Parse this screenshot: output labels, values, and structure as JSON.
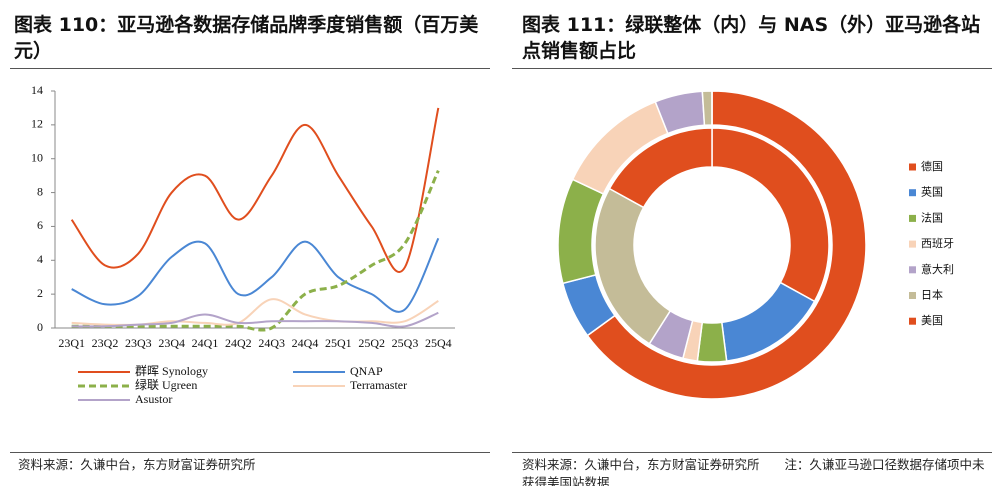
{
  "chart_data": [
    {
      "type": "line",
      "title": "图表 110：亚马逊各数据存储品牌季度销售额（百万美元）",
      "source": "资料来源：久谦中台，东方财富证券研究所",
      "categories": [
        "23Q1",
        "23Q2",
        "23Q3",
        "23Q4",
        "24Q1",
        "24Q2",
        "24Q3",
        "24Q4",
        "25Q1",
        "25Q2",
        "25Q3",
        "25Q4"
      ],
      "ylim": [
        0,
        14
      ],
      "yticks": [
        0,
        2,
        4,
        6,
        8,
        10,
        12,
        14
      ],
      "series": [
        {
          "name": "群晖 Synology",
          "color": "#e04e1e",
          "dash": false,
          "values": [
            6.4,
            3.7,
            4.4,
            8.0,
            9.0,
            6.4,
            9.0,
            12.0,
            9.0,
            6.0,
            3.6,
            13.0
          ]
        },
        {
          "name": "QNAP",
          "color": "#4a87d4",
          "dash": false,
          "values": [
            2.3,
            1.4,
            1.9,
            4.2,
            5.0,
            2.0,
            3.0,
            5.1,
            3.0,
            2.0,
            1.1,
            5.3
          ]
        },
        {
          "name": "绿联 Ugreen",
          "color": "#8cb04a",
          "dash": true,
          "values": [
            0.1,
            0.1,
            0.1,
            0.1,
            0.1,
            0.1,
            0.0,
            2.0,
            2.5,
            3.7,
            5.0,
            9.3
          ]
        },
        {
          "name": "Terramaster",
          "color": "#f8d3b8",
          "dash": false,
          "values": [
            0.3,
            0.2,
            0.2,
            0.4,
            0.3,
            0.3,
            1.7,
            0.8,
            0.4,
            0.4,
            0.4,
            1.6
          ]
        },
        {
          "name": "Asustor",
          "color": "#b3a3c9",
          "dash": false,
          "values": [
            0.1,
            0.1,
            0.2,
            0.3,
            0.8,
            0.3,
            0.4,
            0.4,
            0.4,
            0.3,
            0.1,
            0.9
          ]
        }
      ]
    },
    {
      "type": "double-donut",
      "title": "图表 111：绿联整体（内）与 NAS（外）亚马逊各站点销售额占比",
      "source": "资料来源：久谦中台，东方财富证券研究所　　注：久谦亚马逊口径数据存储项中未获得美国站数据",
      "categories": [
        "德国",
        "英国",
        "法国",
        "西班牙",
        "意大利",
        "日本",
        "美国"
      ],
      "colors": [
        "#e04e1e",
        "#4a87d4",
        "#8cb04a",
        "#f8d3b8",
        "#b3a3c9",
        "#c4bc98",
        "#e04e1e"
      ],
      "inner_values": [
        33,
        15,
        4,
        2,
        5,
        24,
        17
      ],
      "outer_values": [
        65,
        6,
        11,
        12,
        5,
        1,
        0
      ]
    }
  ]
}
